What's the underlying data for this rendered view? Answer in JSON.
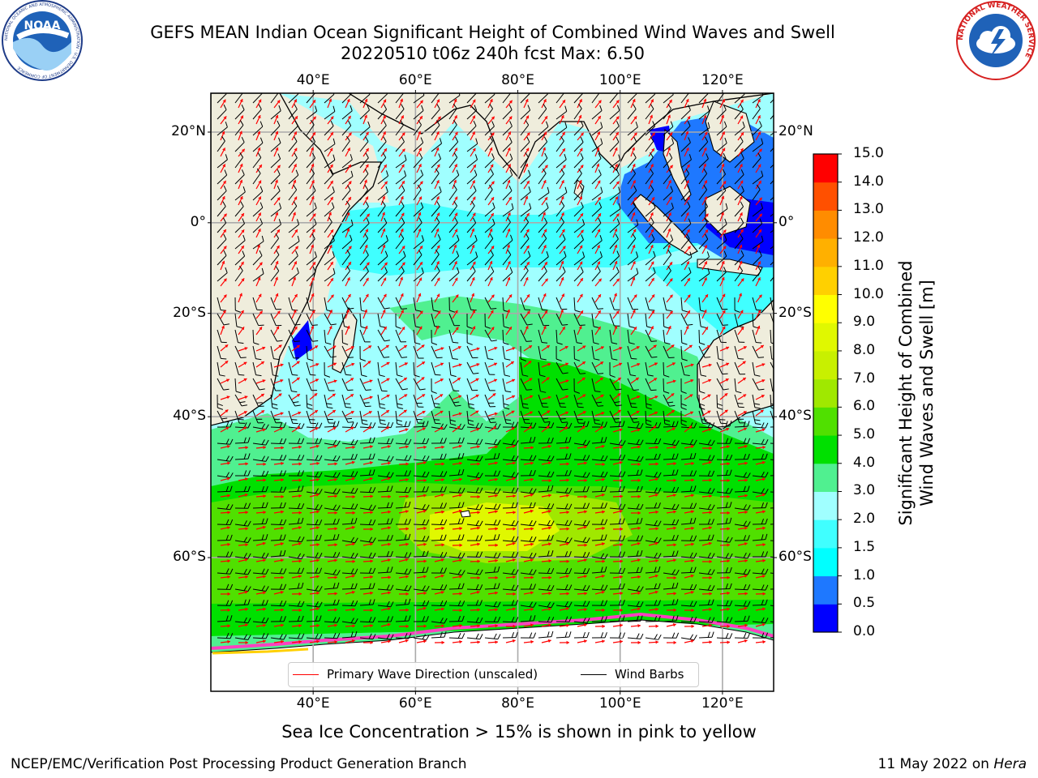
{
  "title": {
    "line1": "GEFS MEAN Indian Ocean Significant Height of Combined Wind Waves and Swell",
    "line2": "20220510 t06z 240h fcst   Max: 6.50"
  },
  "logos": {
    "noaa": {
      "text": "NOAA",
      "ring_text": "NATIONAL OCEANIC AND ATMOSPHERIC ADMINISTRATION · U.S. DEPARTMENT OF COMMERCE"
    },
    "nws": {
      "ring_text": "NATIONAL WEATHER SERVICE"
    }
  },
  "map": {
    "lon_range": [
      20,
      130
    ],
    "lat_range": [
      -72,
      28
    ],
    "lon_ticks": [
      {
        "value": 40,
        "label": "40°E"
      },
      {
        "value": 60,
        "label": "60°E"
      },
      {
        "value": 80,
        "label": "80°E"
      },
      {
        "value": 100,
        "label": "100°E"
      },
      {
        "value": 120,
        "label": "120°E"
      }
    ],
    "lat_ticks": [
      {
        "value": 20,
        "label": "20°N"
      },
      {
        "value": 0,
        "label": "0°"
      },
      {
        "value": -20,
        "label": "20°S"
      },
      {
        "value": -40,
        "label": "40°S"
      },
      {
        "value": -60,
        "label": "60°S"
      }
    ],
    "grid": true,
    "land_color": "#efeddc",
    "ice_color": "#ffffff"
  },
  "colorbar": {
    "label_line1": "Significant Height of Combined",
    "label_line2": "Wind Waves and Swell [m]",
    "ticks": [
      "0.0",
      "0.5",
      "1.0",
      "1.5",
      "2.0",
      "3.0",
      "4.0",
      "5.0",
      "6.0",
      "7.0",
      "8.0",
      "9.0",
      "10.0",
      "11.0",
      "12.0",
      "13.0",
      "14.0",
      "15.0"
    ],
    "colors": [
      "#0000ff",
      "#1e78ff",
      "#00ffff",
      "#40ffff",
      "#a0ffff",
      "#50f090",
      "#00e000",
      "#50e000",
      "#a0e800",
      "#c8f000",
      "#e0f800",
      "#ffff00",
      "#ffd000",
      "#ffb000",
      "#ff8c00",
      "#ff5000",
      "#ff0000"
    ]
  },
  "legend": {
    "wave_direction": "Primary Wave Direction (unscaled)",
    "wind_barbs": "Wind Barbs",
    "wave_color": "#ff0000",
    "barb_color": "#000000"
  },
  "footer": {
    "ice_note": "Sea Ice Concentration > 15% is shown in pink to yellow",
    "branch": "NCEP/EMC/Verification Post Processing Product Generation Branch",
    "date": "11 May 2022 on ",
    "host": "Hera"
  }
}
